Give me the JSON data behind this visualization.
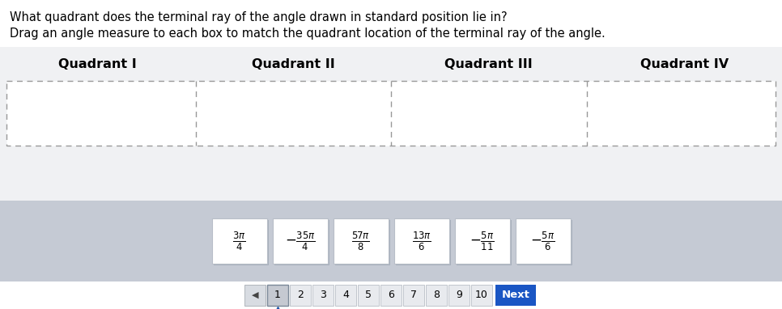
{
  "title1": "What quadrant does the terminal ray of the angle drawn in standard position lie in?",
  "title2": "Drag an angle measure to each box to match the quadrant location of the terminal ray of the angle.",
  "quadrants": [
    "Quadrant I",
    "Quadrant II",
    "Quadrant III",
    "Quadrant IV"
  ],
  "angle_labels": [
    "\\frac{3\\pi}{4}",
    "-\\frac{35\\pi}{4}",
    "\\frac{57\\pi}{8}",
    "\\frac{13\\pi}{6}",
    "-\\frac{5\\pi}{11}",
    "-\\frac{5\\pi}{6}"
  ],
  "white": "#ffffff",
  "light_gray_bg": "#f0f1f3",
  "medium_gray_bg": "#c5cad4",
  "dashed_box_color": "#999999",
  "next_btn_color": "#1a56c4",
  "page_numbers": [
    "1",
    "2",
    "3",
    "4",
    "5",
    "6",
    "7",
    "8",
    "9",
    "10"
  ],
  "figsize": [
    9.66,
    3.82
  ],
  "dpi": 100
}
